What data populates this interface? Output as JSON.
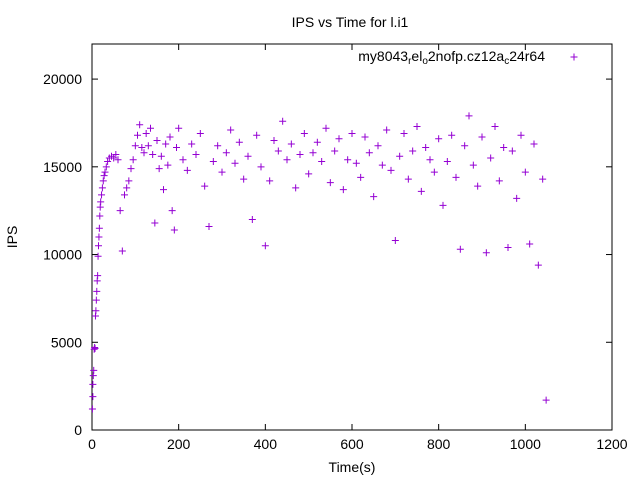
{
  "chart_data": {
    "type": "scatter",
    "title": "IPS vs Time for l.i1",
    "xlabel": "Time(s)",
    "ylabel": "IPS",
    "xlim": [
      0,
      1200
    ],
    "ylim": [
      0,
      22000
    ],
    "xticks": [
      0,
      200,
      400,
      600,
      800,
      1000,
      1200
    ],
    "yticks": [
      0,
      5000,
      10000,
      15000,
      20000
    ],
    "xtick_labels": [
      "0",
      "200",
      "400",
      "600",
      "800",
      "1000",
      "1200"
    ],
    "ytick_labels": [
      "0",
      "5000",
      "10000",
      "15000",
      "20000"
    ],
    "legend_position": "top-right",
    "series_color": "#9400d3",
    "marker": "plus",
    "grid": false,
    "series": [
      {
        "legend_parts": [
          {
            "text": "my8043",
            "sub": false
          },
          {
            "text": "r",
            "sub": true
          },
          {
            "text": "el",
            "sub": false
          },
          {
            "text": "o",
            "sub": true
          },
          {
            "text": "2nofp.cz12a",
            "sub": false
          },
          {
            "text": "c",
            "sub": true
          },
          {
            "text": "24r64",
            "sub": false
          }
        ],
        "points": [
          [
            1,
            1200
          ],
          [
            2,
            1900
          ],
          [
            2,
            2600
          ],
          [
            3,
            3100
          ],
          [
            4,
            3400
          ],
          [
            5,
            4600
          ],
          [
            6,
            4700
          ],
          [
            7,
            4650
          ],
          [
            8,
            6500
          ],
          [
            9,
            6800
          ],
          [
            10,
            7400
          ],
          [
            11,
            7900
          ],
          [
            12,
            8500
          ],
          [
            13,
            8800
          ],
          [
            14,
            9900
          ],
          [
            15,
            10500
          ],
          [
            16,
            11000
          ],
          [
            17,
            11500
          ],
          [
            18,
            12200
          ],
          [
            19,
            12700
          ],
          [
            20,
            13000
          ],
          [
            22,
            13400
          ],
          [
            24,
            13800
          ],
          [
            26,
            14200
          ],
          [
            28,
            14500
          ],
          [
            30,
            14700
          ],
          [
            33,
            15000
          ],
          [
            36,
            15300
          ],
          [
            40,
            15500
          ],
          [
            45,
            15600
          ],
          [
            50,
            15500
          ],
          [
            55,
            15700
          ],
          [
            60,
            15400
          ],
          [
            65,
            12500
          ],
          [
            70,
            10200
          ],
          [
            75,
            13400
          ],
          [
            80,
            13800
          ],
          [
            85,
            14200
          ],
          [
            90,
            14900
          ],
          [
            95,
            15400
          ],
          [
            100,
            16200
          ],
          [
            105,
            16800
          ],
          [
            110,
            17400
          ],
          [
            115,
            16100
          ],
          [
            120,
            15800
          ],
          [
            125,
            16900
          ],
          [
            130,
            16200
          ],
          [
            135,
            17200
          ],
          [
            140,
            15700
          ],
          [
            145,
            11800
          ],
          [
            150,
            16500
          ],
          [
            155,
            14900
          ],
          [
            160,
            15600
          ],
          [
            165,
            13700
          ],
          [
            170,
            16300
          ],
          [
            175,
            15100
          ],
          [
            180,
            16700
          ],
          [
            185,
            12500
          ],
          [
            190,
            11400
          ],
          [
            195,
            16100
          ],
          [
            200,
            17200
          ],
          [
            210,
            15400
          ],
          [
            220,
            14800
          ],
          [
            230,
            16300
          ],
          [
            240,
            15700
          ],
          [
            250,
            16900
          ],
          [
            260,
            13900
          ],
          [
            270,
            11600
          ],
          [
            280,
            15300
          ],
          [
            290,
            16200
          ],
          [
            300,
            14700
          ],
          [
            310,
            15800
          ],
          [
            320,
            17100
          ],
          [
            330,
            15200
          ],
          [
            340,
            16400
          ],
          [
            350,
            14300
          ],
          [
            360,
            15600
          ],
          [
            370,
            12000
          ],
          [
            380,
            16800
          ],
          [
            390,
            15000
          ],
          [
            400,
            10500
          ],
          [
            410,
            14200
          ],
          [
            420,
            16500
          ],
          [
            430,
            15900
          ],
          [
            440,
            17600
          ],
          [
            450,
            15400
          ],
          [
            460,
            16300
          ],
          [
            470,
            13800
          ],
          [
            480,
            15700
          ],
          [
            490,
            16900
          ],
          [
            500,
            14600
          ],
          [
            510,
            15800
          ],
          [
            520,
            16400
          ],
          [
            530,
            15300
          ],
          [
            540,
            17200
          ],
          [
            550,
            14100
          ],
          [
            560,
            15900
          ],
          [
            570,
            16600
          ],
          [
            580,
            13700
          ],
          [
            590,
            15400
          ],
          [
            600,
            16900
          ],
          [
            610,
            15200
          ],
          [
            620,
            14400
          ],
          [
            630,
            16700
          ],
          [
            640,
            15800
          ],
          [
            650,
            13300
          ],
          [
            660,
            16200
          ],
          [
            670,
            15100
          ],
          [
            680,
            17100
          ],
          [
            690,
            14800
          ],
          [
            700,
            10800
          ],
          [
            710,
            15600
          ],
          [
            720,
            16900
          ],
          [
            730,
            14300
          ],
          [
            740,
            15900
          ],
          [
            750,
            17300
          ],
          [
            760,
            13600
          ],
          [
            770,
            16100
          ],
          [
            780,
            15400
          ],
          [
            790,
            14700
          ],
          [
            800,
            16600
          ],
          [
            810,
            12800
          ],
          [
            820,
            15300
          ],
          [
            830,
            16800
          ],
          [
            840,
            14400
          ],
          [
            850,
            10300
          ],
          [
            860,
            16200
          ],
          [
            870,
            17900
          ],
          [
            880,
            15100
          ],
          [
            890,
            13900
          ],
          [
            900,
            16700
          ],
          [
            910,
            10100
          ],
          [
            920,
            15500
          ],
          [
            930,
            17300
          ],
          [
            940,
            14200
          ],
          [
            950,
            16100
          ],
          [
            960,
            10400
          ],
          [
            970,
            15900
          ],
          [
            980,
            13200
          ],
          [
            990,
            16800
          ],
          [
            1000,
            14700
          ],
          [
            1010,
            10600
          ],
          [
            1020,
            16300
          ],
          [
            1030,
            9400
          ],
          [
            1040,
            14300
          ],
          [
            1048,
            1700
          ]
        ]
      }
    ]
  }
}
